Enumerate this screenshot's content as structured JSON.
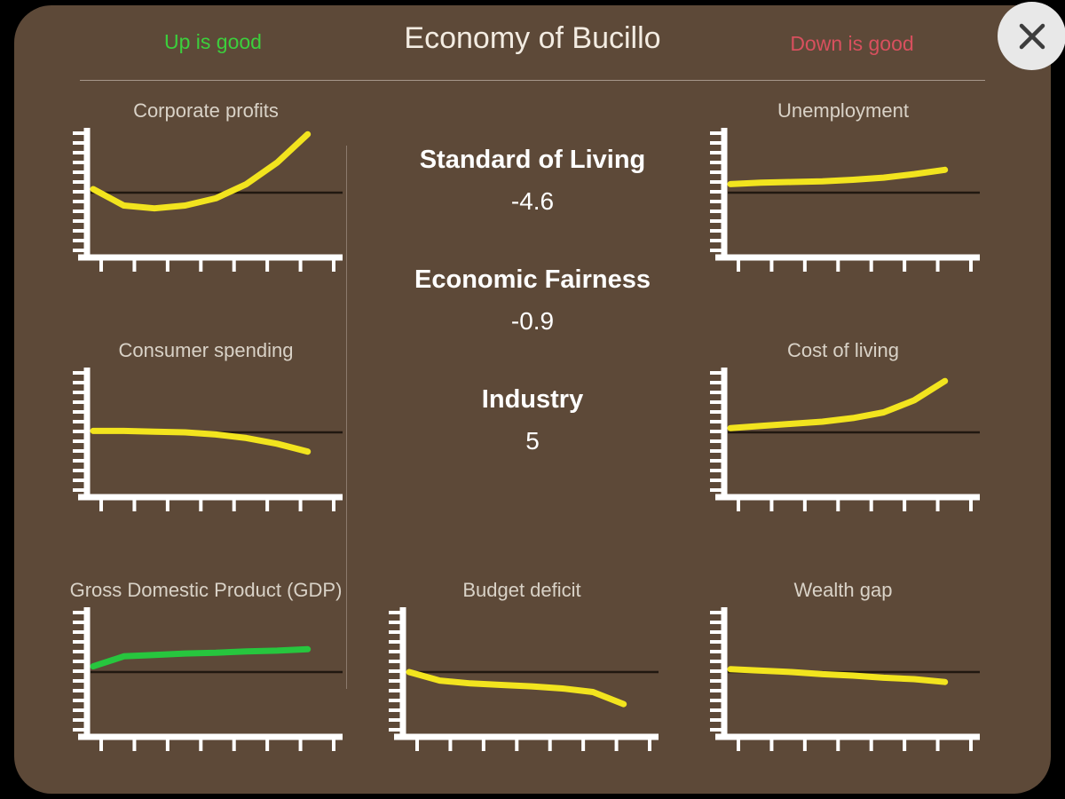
{
  "panel": {
    "title": "Economy of Bucillo",
    "up_label": "Up is good",
    "down_label": "Down is good"
  },
  "stats": [
    {
      "name": "Standard of Living",
      "value": "-4.6"
    },
    {
      "name": "Economic Fairness",
      "value": "-0.9"
    },
    {
      "name": "Industry",
      "value": "5"
    }
  ],
  "colors": {
    "yellow": "#f2e41e",
    "green": "#27c63e",
    "up_text": "#3ccf3c",
    "down_text": "#d8505e",
    "panel_brown": "#5d4938",
    "axis_white": "#ffffff",
    "baseline_dark": "rgba(18,12,6,0.8)"
  },
  "chart_data": [
    {
      "type": "line",
      "title": "Corporate profits",
      "color": "yellow",
      "baseline": 0.5,
      "ylim": [
        -1,
        1
      ],
      "x": [
        0,
        1,
        2,
        3,
        4,
        5,
        6,
        7
      ],
      "values": [
        0.05,
        -0.18,
        -0.22,
        -0.18,
        -0.08,
        0.12,
        0.42,
        0.82
      ],
      "note": "dips slightly below baseline then rises steeply"
    },
    {
      "type": "line",
      "title": "Unemployment",
      "color": "yellow",
      "baseline": 0.5,
      "ylim": [
        -1,
        1
      ],
      "x": [
        0,
        1,
        2,
        3,
        4,
        5,
        6,
        7
      ],
      "values": [
        0.12,
        0.14,
        0.15,
        0.16,
        0.18,
        0.21,
        0.26,
        0.32
      ],
      "note": "slightly above baseline, gently rising"
    },
    {
      "type": "line",
      "title": "Consumer spending",
      "color": "yellow",
      "baseline": 0.5,
      "ylim": [
        -1,
        1
      ],
      "x": [
        0,
        1,
        2,
        3,
        4,
        5,
        6,
        7
      ],
      "values": [
        0.02,
        0.02,
        0.01,
        0.0,
        -0.03,
        -0.08,
        -0.16,
        -0.27
      ],
      "note": "flat at baseline then declining"
    },
    {
      "type": "line",
      "title": "Cost of living",
      "color": "yellow",
      "baseline": 0.5,
      "ylim": [
        -1,
        1
      ],
      "x": [
        0,
        1,
        2,
        3,
        4,
        5,
        6,
        7
      ],
      "values": [
        0.06,
        0.09,
        0.12,
        0.15,
        0.2,
        0.28,
        0.45,
        0.72
      ],
      "note": "rising, steeper at the end"
    },
    {
      "type": "line",
      "title": "Gross Domestic Product (GDP)",
      "color": "green",
      "baseline": 0.5,
      "ylim": [
        -1,
        1
      ],
      "x": [
        0,
        1,
        2,
        3,
        4,
        5,
        6,
        7
      ],
      "values": [
        0.08,
        0.22,
        0.24,
        0.26,
        0.27,
        0.29,
        0.3,
        0.32
      ],
      "note": "green line just above baseline, slowly rising"
    },
    {
      "type": "line",
      "title": "Budget deficit",
      "color": "yellow",
      "baseline": 0.5,
      "ylim": [
        -1,
        1
      ],
      "x": [
        0,
        1,
        2,
        3,
        4,
        5,
        6,
        7
      ],
      "values": [
        0.0,
        -0.12,
        -0.16,
        -0.18,
        -0.2,
        -0.23,
        -0.28,
        -0.45
      ],
      "note": "starts at baseline, declining with final drop"
    },
    {
      "type": "line",
      "title": "Wealth gap",
      "color": "yellow",
      "baseline": 0.5,
      "ylim": [
        -1,
        1
      ],
      "x": [
        0,
        1,
        2,
        3,
        4,
        5,
        6,
        7
      ],
      "values": [
        0.04,
        0.02,
        0.0,
        -0.03,
        -0.05,
        -0.08,
        -0.1,
        -0.14
      ],
      "note": "near baseline, gently declining"
    }
  ]
}
